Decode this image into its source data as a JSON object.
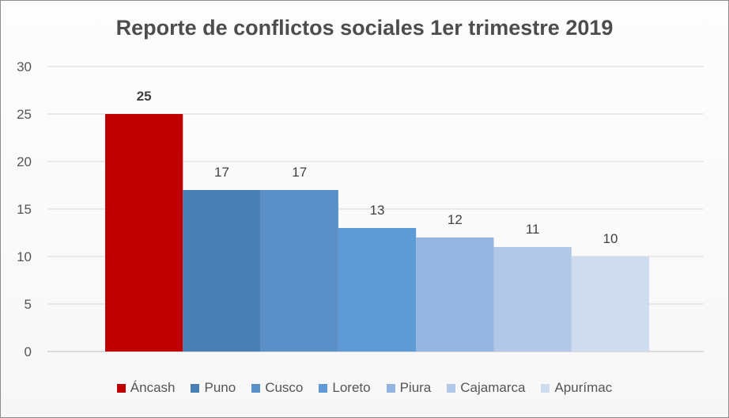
{
  "chart_data": {
    "type": "bar",
    "title": "Reporte de conflictos sociales 1er trimestre 2019",
    "xlabel": "",
    "ylabel": "",
    "ylim": [
      0,
      30
    ],
    "yticks": [
      0,
      5,
      10,
      15,
      20,
      25,
      30
    ],
    "grid": true,
    "legend_position": "bottom",
    "series": [
      {
        "name": "Áncash",
        "value": 25,
        "color": "#c00000",
        "label_bold": true
      },
      {
        "name": "Puno",
        "value": 17,
        "color": "#4a7fb5"
      },
      {
        "name": "Cusco",
        "value": 17,
        "color": "#5b8fc7"
      },
      {
        "name": "Loreto",
        "value": 13,
        "color": "#5e9ad6"
      },
      {
        "name": "Piura",
        "value": 12,
        "color": "#93b5df"
      },
      {
        "name": "Cajamarca",
        "value": 11,
        "color": "#b2c8e6"
      },
      {
        "name": "Apurímac",
        "value": 10,
        "color": "#cfdcef"
      }
    ]
  }
}
